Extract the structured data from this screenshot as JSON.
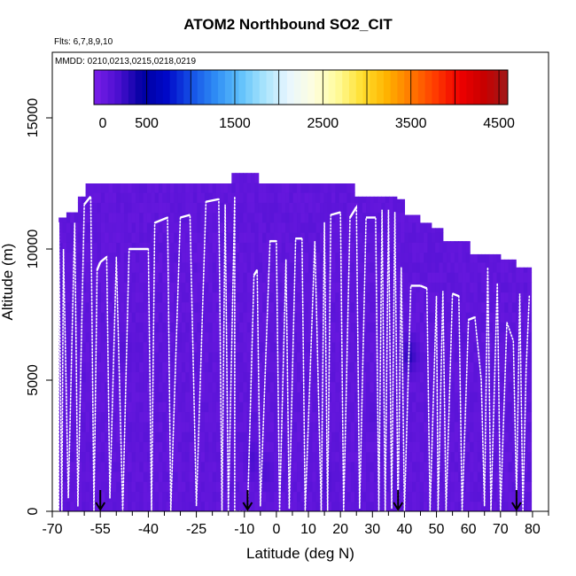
{
  "chart_data": {
    "type": "heatmap",
    "title": "ATOM2 Northbound SO2_CIT",
    "flights_note": "Flts: 6,7,8,9,10",
    "dates_note": "MMDD: 0210,0213,0215,0218,0219",
    "xlabel": "Latitude (deg N)",
    "ylabel": "Altitude (m)",
    "xlim": [
      -70,
      85
    ],
    "ylim": [
      0,
      17500
    ],
    "x_ticks": [
      -70,
      -55,
      -40,
      -25,
      -10,
      0,
      10,
      20,
      30,
      40,
      50,
      60,
      70,
      80
    ],
    "x_tick_labels": [
      "-70",
      "-55",
      "-40",
      "-25",
      "-10",
      "0",
      "10",
      "20",
      "30",
      "40",
      "50",
      "60",
      "70",
      "80"
    ],
    "y_ticks": [
      0,
      5000,
      10000,
      15000
    ],
    "y_tick_labels": [
      "0",
      "5000",
      "10000",
      "15000"
    ],
    "colorbar": {
      "range": [
        -100,
        4600
      ],
      "ticks": [
        0,
        500,
        1500,
        2500,
        3500,
        4500
      ],
      "tick_labels": [
        "0",
        "500",
        "1500",
        "2500",
        "3500",
        "4500"
      ],
      "colors": [
        "#7a1ee8",
        "#4b0fd0",
        "#0000a0",
        "#0008c8",
        "#1450e6",
        "#2f8df5",
        "#5ec0fb",
        "#a8e4fc",
        "#e8f6fe",
        "#fefee0",
        "#fffb9a",
        "#ffe030",
        "#ffb400",
        "#ff7a00",
        "#ff3c00",
        "#f00000",
        "#c80000",
        "#a01818"
      ]
    },
    "field": {
      "value_range": [
        0,
        300
      ],
      "base_color": "#7a1ee8",
      "coverage_top": [
        [
          -68,
          11200
        ],
        [
          -66,
          10200
        ],
        [
          -62,
          11400
        ],
        [
          -59,
          12000
        ],
        [
          -57,
          12500
        ],
        [
          -45,
          12500
        ],
        [
          -30,
          12500
        ],
        [
          -20,
          12500
        ],
        [
          -14,
          12500
        ],
        [
          -12,
          12900
        ],
        [
          -5,
          12500
        ],
        [
          5,
          12500
        ],
        [
          15,
          12500
        ],
        [
          25,
          12000
        ],
        [
          35,
          12000
        ],
        [
          38,
          11900
        ],
        [
          40,
          11300
        ],
        [
          45,
          11000
        ],
        [
          48,
          10800
        ],
        [
          52,
          10300
        ],
        [
          56,
          10300
        ],
        [
          60,
          9800
        ],
        [
          65,
          9800
        ],
        [
          70,
          9600
        ],
        [
          75,
          9300
        ],
        [
          80,
          8900
        ]
      ],
      "low_value_patches": [
        {
          "lat": 41,
          "alt": 5800,
          "value": 300
        },
        {
          "lat": -8,
          "alt": 1800,
          "value": 150
        },
        {
          "lat": -4,
          "alt": 1300,
          "value": 150
        },
        {
          "lat": 15,
          "alt": 1000,
          "value": 120
        },
        {
          "lat": -48,
          "alt": 6000,
          "value": 100
        },
        {
          "lat": 30,
          "alt": 3500,
          "value": 100
        }
      ]
    },
    "flight_track": [
      [
        -68,
        0
      ],
      [
        -68,
        11000
      ],
      [
        -67,
        0
      ],
      [
        -66.5,
        10000
      ],
      [
        -65,
        500
      ],
      [
        -63,
        11000
      ],
      [
        -62,
        200
      ],
      [
        -60,
        11700
      ],
      [
        -58,
        12000
      ],
      [
        -57,
        0
      ],
      [
        -56,
        9200
      ],
      [
        -55,
        9500
      ],
      [
        -53,
        9700
      ],
      [
        -52,
        500
      ],
      [
        -50,
        9700
      ],
      [
        -48,
        0
      ],
      [
        -46,
        10000
      ],
      [
        -40,
        10000
      ],
      [
        -39,
        0
      ],
      [
        -38,
        11000
      ],
      [
        -34,
        11200
      ],
      [
        -33,
        0
      ],
      [
        -30,
        11200
      ],
      [
        -27,
        11300
      ],
      [
        -25,
        200
      ],
      [
        -22,
        11800
      ],
      [
        -18,
        11900
      ],
      [
        -17,
        0
      ],
      [
        -16,
        11700
      ],
      [
        -15,
        0
      ],
      [
        -13,
        12000
      ],
      [
        -13,
        0
      ],
      [
        -9,
        0
      ],
      [
        -7,
        9000
      ],
      [
        -6,
        9200
      ],
      [
        -5,
        200
      ],
      [
        -2,
        10300
      ],
      [
        0,
        10300
      ],
      [
        1,
        0
      ],
      [
        3,
        9600
      ],
      [
        4,
        100
      ],
      [
        6,
        10400
      ],
      [
        8,
        10400
      ],
      [
        9,
        0
      ],
      [
        12,
        10300
      ],
      [
        14,
        0
      ],
      [
        15,
        11000
      ],
      [
        16,
        0
      ],
      [
        17,
        11300
      ],
      [
        20,
        11400
      ],
      [
        21,
        0
      ],
      [
        23,
        11200
      ],
      [
        25,
        11600
      ],
      [
        26,
        100
      ],
      [
        28,
        11200
      ],
      [
        31,
        11200
      ],
      [
        32,
        0
      ],
      [
        33,
        11500
      ],
      [
        34,
        0
      ],
      [
        35,
        11500
      ],
      [
        36,
        100
      ],
      [
        37,
        11400
      ],
      [
        38,
        0
      ],
      [
        39,
        9300
      ],
      [
        40,
        0
      ],
      [
        42,
        8600
      ],
      [
        45,
        8600
      ],
      [
        47,
        8500
      ],
      [
        48,
        0
      ],
      [
        50,
        8200
      ],
      [
        50.5,
        0
      ],
      [
        52,
        8400
      ],
      [
        53,
        0
      ],
      [
        55,
        8300
      ],
      [
        57,
        8200
      ],
      [
        58,
        0
      ],
      [
        60,
        7300
      ],
      [
        62,
        7400
      ],
      [
        64,
        5000
      ],
      [
        65,
        200
      ],
      [
        66,
        9300
      ],
      [
        67,
        0
      ],
      [
        69,
        8700
      ],
      [
        70,
        0
      ],
      [
        72,
        7200
      ],
      [
        74,
        6500
      ],
      [
        75,
        500
      ],
      [
        76,
        8300
      ],
      [
        77,
        0
      ],
      [
        78,
        5400
      ],
      [
        79,
        8200
      ]
    ],
    "arrows": [
      -55,
      -9,
      38,
      75
    ]
  }
}
